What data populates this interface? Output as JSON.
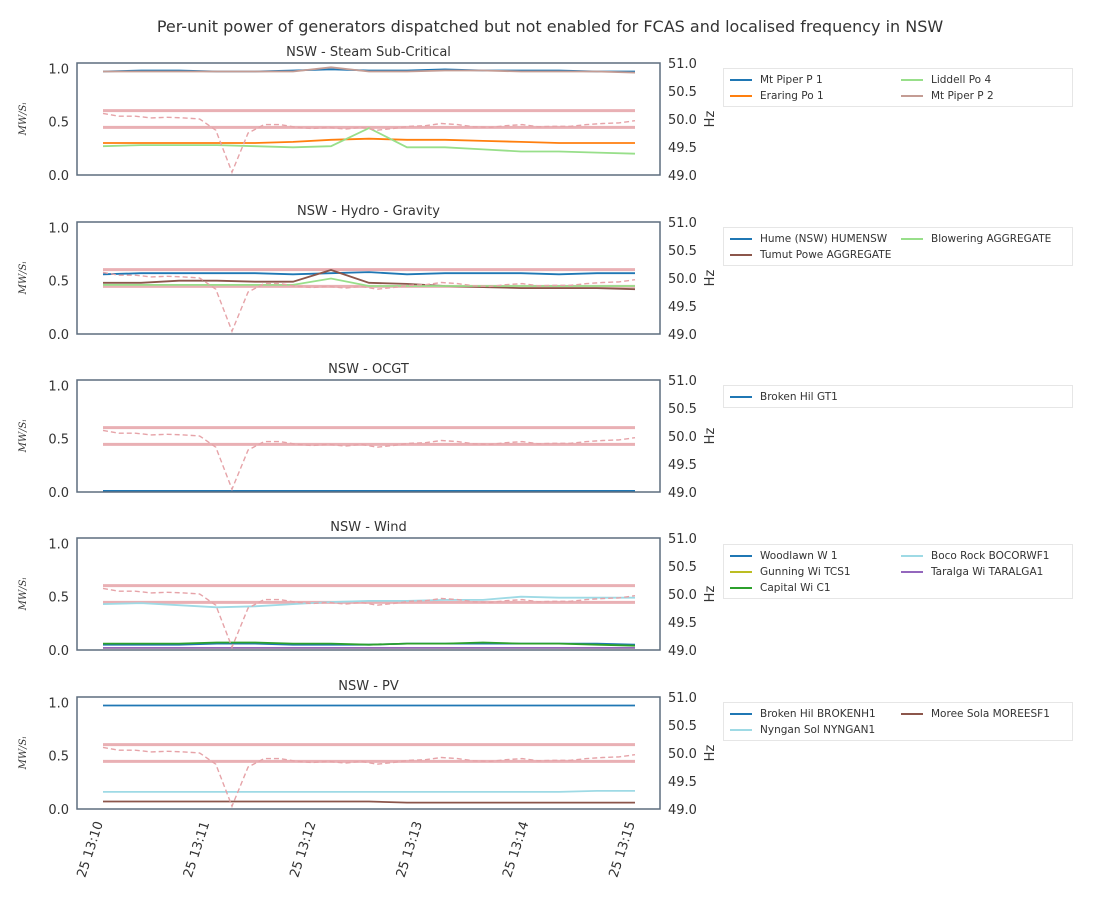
{
  "figure_title": "Per-unit power of generators dispatched but not enabled for FCAS and localised frequency in NSW",
  "left_axis_label": "MW/Sᵢ",
  "right_axis_label": "Hz",
  "left_ticks": [
    "0.0",
    "0.5",
    "1.0"
  ],
  "right_ticks": [
    "49.0",
    "49.5",
    "50.0",
    "50.5",
    "51.0"
  ],
  "x_ticks": [
    "25 13:10",
    "25 13:11",
    "25 13:12",
    "25 13:13",
    "25 13:14",
    "25 13:15"
  ],
  "colors": {
    "frequency_line": "#e6a3a8",
    "frequency_band": "#e6a3a8",
    "axes_frame": "#5d6d7e"
  },
  "chart_data": [
    {
      "type": "line",
      "title": "NSW - Steam Sub-Critical",
      "legend_columns": 2,
      "ylim": [
        0,
        1.05
      ],
      "y2lim": [
        49,
        51
      ],
      "x_range_minutes": [
        0,
        5
      ],
      "series": [
        {
          "name": "Mt Piper P 1",
          "color": "#1f77b4",
          "values": [
            0.97,
            0.98,
            0.98,
            0.97,
            0.97,
            0.98,
            0.99,
            0.98,
            0.98,
            0.99,
            0.98,
            0.98,
            0.98,
            0.97,
            0.97
          ]
        },
        {
          "name": "Eraring Po 1",
          "color": "#ff7f0e",
          "values": [
            0.3,
            0.3,
            0.3,
            0.3,
            0.3,
            0.31,
            0.33,
            0.34,
            0.33,
            0.33,
            0.32,
            0.31,
            0.3,
            0.3,
            0.3
          ]
        },
        {
          "name": "Liddell Po 4",
          "color": "#98df8a",
          "values": [
            0.27,
            0.28,
            0.28,
            0.28,
            0.27,
            0.26,
            0.27,
            0.44,
            0.26,
            0.26,
            0.24,
            0.22,
            0.22,
            0.21,
            0.2
          ]
        },
        {
          "name": "Mt Piper P 2",
          "color": "#c49c94",
          "values": [
            0.97,
            0.97,
            0.97,
            0.97,
            0.97,
            0.97,
            1.01,
            0.97,
            0.97,
            0.98,
            0.98,
            0.97,
            0.97,
            0.97,
            0.96
          ]
        }
      ]
    },
    {
      "type": "line",
      "title": "NSW - Hydro - Gravity",
      "legend_columns": 2,
      "ylim": [
        0,
        1.05
      ],
      "y2lim": [
        49,
        51
      ],
      "x_range_minutes": [
        0,
        5
      ],
      "series": [
        {
          "name": "Hume (NSW) HUMENSW",
          "color": "#1f77b4",
          "values": [
            0.56,
            0.57,
            0.57,
            0.57,
            0.57,
            0.56,
            0.57,
            0.58,
            0.56,
            0.57,
            0.57,
            0.57,
            0.56,
            0.57,
            0.57
          ]
        },
        {
          "name": "Tumut Powe AGGREGATE",
          "color": "#8c564b",
          "values": [
            0.48,
            0.48,
            0.5,
            0.5,
            0.49,
            0.49,
            0.6,
            0.48,
            0.47,
            0.45,
            0.44,
            0.43,
            0.43,
            0.43,
            0.42
          ]
        },
        {
          "name": "Blowering  AGGREGATE",
          "color": "#98df8a",
          "values": [
            0.46,
            0.46,
            0.46,
            0.46,
            0.46,
            0.46,
            0.52,
            0.45,
            0.45,
            0.45,
            0.45,
            0.45,
            0.45,
            0.45,
            0.45
          ]
        }
      ]
    },
    {
      "type": "line",
      "title": "NSW - OCGT",
      "legend_columns": 1,
      "ylim": [
        0,
        1.05
      ],
      "y2lim": [
        49,
        51
      ],
      "x_range_minutes": [
        0,
        5
      ],
      "series": [
        {
          "name": "Broken Hil GT1",
          "color": "#1f77b4",
          "values": [
            0.01,
            0.01,
            0.01,
            0.01,
            0.01,
            0.01,
            0.01,
            0.01,
            0.01,
            0.01,
            0.01,
            0.01,
            0.01,
            0.01,
            0.01
          ]
        }
      ]
    },
    {
      "type": "line",
      "title": "NSW - Wind",
      "legend_columns": 2,
      "ylim": [
        0,
        1.05
      ],
      "y2lim": [
        49,
        51
      ],
      "x_range_minutes": [
        0,
        5
      ],
      "series": [
        {
          "name": "Woodlawn W 1",
          "color": "#1f77b4",
          "values": [
            0.05,
            0.05,
            0.05,
            0.06,
            0.06,
            0.05,
            0.05,
            0.05,
            0.06,
            0.06,
            0.06,
            0.06,
            0.06,
            0.06,
            0.05
          ]
        },
        {
          "name": "Gunning Wi TCS1",
          "color": "#bcbd22",
          "values": [
            0.02,
            0.02,
            0.02,
            0.02,
            0.02,
            0.02,
            0.02,
            0.02,
            0.02,
            0.02,
            0.02,
            0.02,
            0.02,
            0.02,
            0.02
          ]
        },
        {
          "name": "Capital Wi C1",
          "color": "#2ca02c",
          "values": [
            0.06,
            0.06,
            0.06,
            0.07,
            0.07,
            0.06,
            0.06,
            0.05,
            0.06,
            0.06,
            0.07,
            0.06,
            0.06,
            0.05,
            0.04
          ]
        },
        {
          "name": "Boco Rock  BOCORWF1",
          "color": "#9edae5",
          "values": [
            0.43,
            0.44,
            0.42,
            0.4,
            0.41,
            0.43,
            0.45,
            0.46,
            0.46,
            0.47,
            0.47,
            0.5,
            0.49,
            0.49,
            0.49
          ]
        },
        {
          "name": "Taralga Wi TARALGA1",
          "color": "#9467bd",
          "values": [
            0.02,
            0.02,
            0.02,
            0.02,
            0.02,
            0.02,
            0.02,
            0.02,
            0.02,
            0.02,
            0.02,
            0.02,
            0.02,
            0.02,
            0.02
          ]
        }
      ]
    },
    {
      "type": "line",
      "title": "NSW - PV",
      "legend_columns": 2,
      "ylim": [
        0,
        1.05
      ],
      "y2lim": [
        49,
        51
      ],
      "x_range_minutes": [
        0,
        5
      ],
      "series": [
        {
          "name": "Broken Hil BROKENH1",
          "color": "#1f77b4",
          "values": [
            0.97,
            0.97,
            0.97,
            0.97,
            0.97,
            0.97,
            0.97,
            0.97,
            0.97,
            0.97,
            0.97,
            0.97,
            0.97,
            0.97,
            0.97
          ]
        },
        {
          "name": "Nyngan Sol NYNGAN1",
          "color": "#9edae5",
          "values": [
            0.16,
            0.16,
            0.16,
            0.16,
            0.16,
            0.16,
            0.16,
            0.16,
            0.16,
            0.16,
            0.16,
            0.16,
            0.16,
            0.17,
            0.17
          ]
        },
        {
          "name": "Moree Sola MOREESF1",
          "color": "#8c564b",
          "values": [
            0.07,
            0.07,
            0.07,
            0.07,
            0.07,
            0.07,
            0.07,
            0.07,
            0.06,
            0.06,
            0.06,
            0.06,
            0.06,
            0.06,
            0.06
          ]
        }
      ]
    }
  ],
  "frequency": {
    "band_hz": [
      49.85,
      50.15
    ],
    "values_hz": [
      50.1,
      50.05,
      50.05,
      50.02,
      50.03,
      50.02,
      50.0,
      49.8,
      49.05,
      49.75,
      49.9,
      49.9,
      49.85,
      49.83,
      49.85,
      49.82,
      49.85,
      49.8,
      49.83,
      49.87,
      49.88,
      49.92,
      49.9,
      49.86,
      49.85,
      49.88,
      49.9,
      49.86,
      49.87,
      49.87,
      49.9,
      49.92,
      49.93,
      49.97
    ]
  }
}
